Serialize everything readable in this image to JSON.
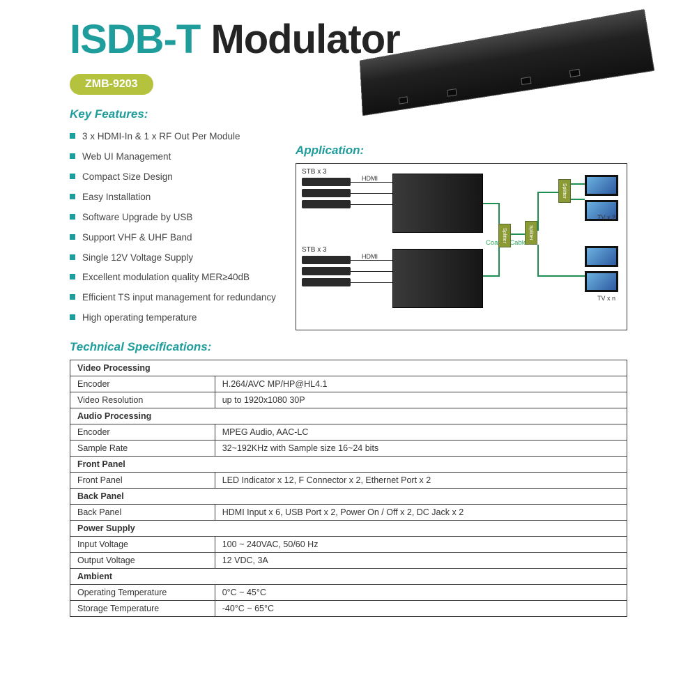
{
  "title": {
    "accent": "ISDB-T",
    "rest": " Modulator"
  },
  "model": "ZMB-9203",
  "colors": {
    "accent": "#1f9c9c",
    "pill": "#b5c23e",
    "text": "#3a3a3a",
    "border": "#3d3d3d",
    "diagram_green": "#2aa75a"
  },
  "headings": {
    "features": "Key Features:",
    "application": "Application:",
    "specs": "Technical Specifications:"
  },
  "features": [
    "3 x HDMI-In & 1 x RF Out Per Module",
    "Web UI Management",
    "Compact Size Design",
    "Easy Installation",
    "Software Upgrade by USB",
    "Support VHF & UHF Band",
    "Single 12V Voltage Supply",
    "Excellent modulation quality MER≥40dB",
    "Efficient TS input management for redundancy",
    "High operating temperature"
  ],
  "application": {
    "stb_label": "STB x 3",
    "hdmi_label": "HDMI",
    "coax_label": "Coaxial Cable",
    "splitter_label": "Splitter",
    "tv2_label": "TV x 2",
    "tvn_label": "TV x n"
  },
  "spec_groups": [
    {
      "group": "Video Processing",
      "rows": [
        [
          "Encoder",
          "H.264/AVC MP/HP@HL4.1"
        ],
        [
          "Video Resolution",
          "up to 1920x1080 30P"
        ]
      ]
    },
    {
      "group": "Audio Processing",
      "rows": [
        [
          "Encoder",
          "MPEG Audio, AAC-LC"
        ],
        [
          "Sample Rate",
          "32~192KHz with Sample size 16~24 bits"
        ]
      ]
    },
    {
      "group": "Front Panel",
      "rows": [
        [
          "Front Panel",
          "LED Indicator x 12,  F Connector x 2,  Ethernet Port x 2"
        ]
      ]
    },
    {
      "group": "Back Panel",
      "rows": [
        [
          "Back Panel",
          "HDMI Input x 6, USB Port x 2, Power On / Off x 2,  DC Jack x 2"
        ]
      ]
    },
    {
      "group": "Power Supply",
      "rows": [
        [
          "Input Voltage",
          "100 ~ 240VAC, 50/60 Hz"
        ],
        [
          "Output Voltage",
          "12 VDC, 3A"
        ]
      ]
    },
    {
      "group": "Ambient",
      "rows": [
        [
          "Operating Temperature",
          "0°C ~ 45°C"
        ],
        [
          "Storage Temperature",
          "-40°C ~ 65°C"
        ]
      ]
    }
  ]
}
